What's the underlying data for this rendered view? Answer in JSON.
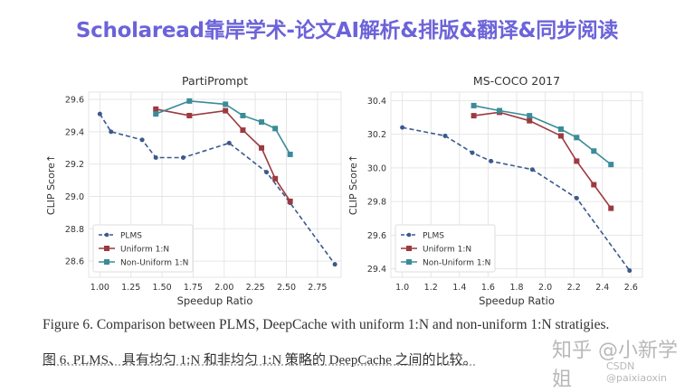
{
  "banner": "Scholaread靠岸学术-论文AI解析&排版&翻译&同步阅读",
  "caption_en": "Figure 6. Comparison between PLMS, DeepCache with uniform 1:N and non-uniform 1:N stratigies.",
  "caption_zh": "图 6. PLMS、具有均匀 1:N 和非均匀 1:N 策略的 DeepCache 之间的比较。",
  "watermark": {
    "line1": "知乎 @小新学姐",
    "line2": "CSDN @paixiaoxin"
  },
  "colors": {
    "PLMS": "#3a5a8c",
    "Uniform 1:N": "#9c3a40",
    "Non-Uniform 1:N": "#3a8c98",
    "banner": "#6c63d9"
  },
  "chart_data": [
    {
      "type": "line",
      "title": "PartiPrompt",
      "xlabel": "Speedup Ratio",
      "ylabel": "CLIP Score↑",
      "xlim": [
        0.91,
        2.94
      ],
      "ylim": [
        28.5,
        29.645
      ],
      "xticks": [
        "1.00",
        "1.25",
        "1.50",
        "1.75",
        "2.00",
        "2.25",
        "2.50",
        "2.75"
      ],
      "yticks": [
        "28.6",
        "28.8",
        "29.0",
        "29.2",
        "29.4",
        "29.6"
      ],
      "grid": true,
      "legend": "bottom-left",
      "series": [
        {
          "name": "PLMS",
          "style": "dashed",
          "marker": "circle",
          "x": [
            1.0,
            1.09,
            1.34,
            1.45,
            1.67,
            2.04,
            2.34,
            2.53,
            2.89
          ],
          "y": [
            29.51,
            29.4,
            29.35,
            29.24,
            29.24,
            29.33,
            29.15,
            28.96,
            28.58
          ]
        },
        {
          "name": "Uniform 1:N",
          "style": "solid",
          "marker": "square",
          "x": [
            1.45,
            1.72,
            2.01,
            2.15,
            2.3,
            2.41,
            2.53
          ],
          "y": [
            29.54,
            29.5,
            29.53,
            29.41,
            29.3,
            29.11,
            28.97
          ]
        },
        {
          "name": "Non-Uniform 1:N",
          "style": "solid",
          "marker": "square",
          "x": [
            1.45,
            1.72,
            2.01,
            2.15,
            2.3,
            2.41,
            2.53
          ],
          "y": [
            29.51,
            29.59,
            29.57,
            29.5,
            29.46,
            29.42,
            29.26
          ]
        }
      ]
    },
    {
      "type": "line",
      "title": "MS-COCO 2017",
      "xlabel": "Speedup Ratio",
      "ylabel": "CLIP Score↑",
      "xlim": [
        0.92,
        2.68
      ],
      "ylim": [
        29.35,
        30.45
      ],
      "xticks": [
        "1.0",
        "1.2",
        "1.4",
        "1.6",
        "1.8",
        "2.0",
        "2.2",
        "2.4",
        "2.6"
      ],
      "yticks": [
        "29.4",
        "29.6",
        "29.8",
        "30.0",
        "30.2",
        "30.4"
      ],
      "grid": true,
      "legend": "bottom-left",
      "series": [
        {
          "name": "PLMS",
          "style": "dashed",
          "marker": "circle",
          "x": [
            1.0,
            1.3,
            1.49,
            1.62,
            1.91,
            2.22,
            2.59
          ],
          "y": [
            30.24,
            30.19,
            30.09,
            30.04,
            29.99,
            29.82,
            29.39
          ]
        },
        {
          "name": "Uniform 1:N",
          "style": "solid",
          "marker": "square",
          "x": [
            1.5,
            1.68,
            1.89,
            2.11,
            2.22,
            2.34,
            2.46
          ],
          "y": [
            30.31,
            30.33,
            30.28,
            30.19,
            30.04,
            29.9,
            29.76
          ]
        },
        {
          "name": "Non-Uniform 1:N",
          "style": "solid",
          "marker": "square",
          "x": [
            1.5,
            1.68,
            1.89,
            2.11,
            2.22,
            2.34,
            2.46
          ],
          "y": [
            30.37,
            30.34,
            30.31,
            30.23,
            30.18,
            30.1,
            30.02
          ]
        }
      ]
    }
  ]
}
